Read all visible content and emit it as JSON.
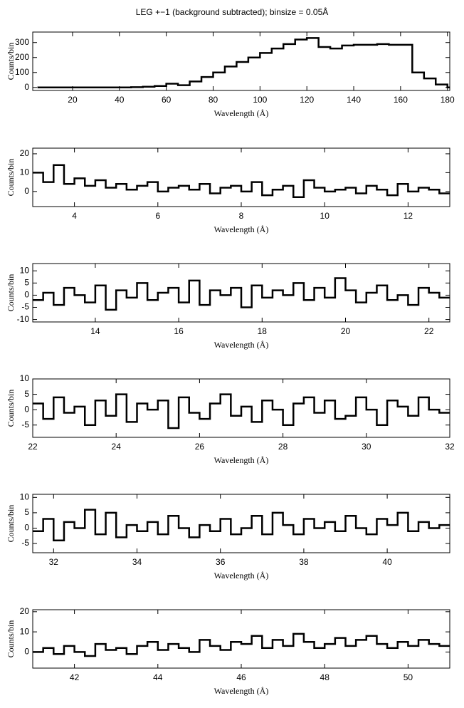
{
  "chart_data": [
    {
      "type": "line",
      "title": "LEG +−1 (background subtracted); binsize = 0.05Å",
      "x_label": "Wavelength (Å)",
      "y_label": "Counts/bin",
      "xlim": [
        3,
        181
      ],
      "ylim": [
        -20,
        370
      ],
      "xticks": [
        20,
        40,
        60,
        80,
        100,
        120,
        140,
        160,
        180
      ],
      "yticks": [
        0,
        100,
        200,
        300
      ],
      "x": [
        5,
        10,
        15,
        20,
        25,
        30,
        35,
        40,
        45,
        50,
        55,
        60,
        65,
        70,
        75,
        80,
        85,
        90,
        95,
        100,
        105,
        110,
        115,
        120,
        125,
        130,
        135,
        140,
        145,
        150,
        155,
        160,
        165,
        170,
        175,
        180
      ],
      "values": [
        0,
        0,
        0,
        0,
        0,
        0,
        0,
        0,
        2,
        5,
        10,
        25,
        15,
        40,
        70,
        100,
        140,
        170,
        200,
        230,
        260,
        290,
        320,
        330,
        270,
        260,
        280,
        285,
        285,
        290,
        285,
        285,
        100,
        60,
        20,
        0
      ]
    },
    {
      "type": "line",
      "x_label": "Wavelength (Å)",
      "y_label": "Counts/bin",
      "xlim": [
        3,
        13
      ],
      "ylim": [
        -8,
        23
      ],
      "xticks": [
        4,
        6,
        8,
        10,
        12
      ],
      "yticks": [
        0,
        10,
        20
      ],
      "x": [
        3,
        3.25,
        3.5,
        3.75,
        4,
        4.25,
        4.5,
        4.75,
        5,
        5.25,
        5.5,
        5.75,
        6,
        6.25,
        6.5,
        6.75,
        7,
        7.25,
        7.5,
        7.75,
        8,
        8.25,
        8.5,
        8.75,
        9,
        9.25,
        9.5,
        9.75,
        10,
        10.25,
        10.5,
        10.75,
        11,
        11.25,
        11.5,
        11.75,
        12,
        12.25,
        12.5,
        12.75
      ],
      "values": [
        10,
        5,
        14,
        4,
        7,
        3,
        6,
        2,
        4,
        1,
        3,
        5,
        0,
        2,
        3,
        1,
        4,
        -1,
        2,
        3,
        0,
        5,
        -2,
        1,
        3,
        -3,
        6,
        2,
        0,
        1,
        2,
        -1,
        3,
        1,
        -2,
        4,
        0,
        2,
        1,
        -1
      ]
    },
    {
      "type": "line",
      "x_label": "Wavelength (Å)",
      "y_label": "Counts/bin",
      "xlim": [
        12.5,
        22.5
      ],
      "ylim": [
        -11,
        13
      ],
      "xticks": [
        14,
        16,
        18,
        20,
        22
      ],
      "yticks": [
        -10,
        -5,
        0,
        5,
        10
      ],
      "x": [
        12.5,
        12.75,
        13,
        13.25,
        13.5,
        13.75,
        14,
        14.25,
        14.5,
        14.75,
        15,
        15.25,
        15.5,
        15.75,
        16,
        16.25,
        16.5,
        16.75,
        17,
        17.25,
        17.5,
        17.75,
        18,
        18.25,
        18.5,
        18.75,
        19,
        19.25,
        19.5,
        19.75,
        20,
        20.25,
        20.5,
        20.75,
        21,
        21.25,
        21.5,
        21.75,
        22,
        22.25
      ],
      "values": [
        -2,
        1,
        -4,
        3,
        0,
        -3,
        4,
        -6,
        2,
        -1,
        5,
        -2,
        1,
        3,
        -3,
        6,
        -4,
        2,
        0,
        3,
        -5,
        4,
        -1,
        2,
        0,
        5,
        -2,
        3,
        -1,
        7,
        2,
        -3,
        1,
        4,
        -2,
        0,
        -4,
        3,
        1,
        -1
      ]
    },
    {
      "type": "line",
      "x_label": "Wavelength (Å)",
      "y_label": "Counts/bin",
      "xlim": [
        22,
        32
      ],
      "ylim": [
        -9,
        10
      ],
      "xticks": [
        22,
        24,
        26,
        28,
        30,
        32
      ],
      "yticks": [
        -5,
        0,
        5,
        10
      ],
      "x": [
        22,
        22.25,
        22.5,
        22.75,
        23,
        23.25,
        23.5,
        23.75,
        24,
        24.25,
        24.5,
        24.75,
        25,
        25.25,
        25.5,
        25.75,
        26,
        26.25,
        26.5,
        26.75,
        27,
        27.25,
        27.5,
        27.75,
        28,
        28.25,
        28.5,
        28.75,
        29,
        29.25,
        29.5,
        29.75,
        30,
        30.25,
        30.5,
        30.75,
        31,
        31.25,
        31.5,
        31.75
      ],
      "values": [
        2,
        -3,
        4,
        -1,
        1,
        -5,
        3,
        -2,
        5,
        -4,
        2,
        0,
        3,
        -6,
        4,
        -1,
        -3,
        2,
        5,
        -2,
        1,
        -4,
        3,
        0,
        -5,
        2,
        4,
        -1,
        3,
        -3,
        -2,
        4,
        0,
        -5,
        3,
        1,
        -2,
        4,
        0,
        -1
      ]
    },
    {
      "type": "line",
      "x_label": "Wavelength (Å)",
      "y_label": "Counts/bin",
      "xlim": [
        31.5,
        41.5
      ],
      "ylim": [
        -8,
        11
      ],
      "xticks": [
        32,
        34,
        36,
        38,
        40
      ],
      "yticks": [
        -5,
        0,
        5,
        10
      ],
      "x": [
        31.5,
        31.75,
        32,
        32.25,
        32.5,
        32.75,
        33,
        33.25,
        33.5,
        33.75,
        34,
        34.25,
        34.5,
        34.75,
        35,
        35.25,
        35.5,
        35.75,
        36,
        36.25,
        36.5,
        36.75,
        37,
        37.25,
        37.5,
        37.75,
        38,
        38.25,
        38.5,
        38.75,
        39,
        39.25,
        39.5,
        39.75,
        40,
        40.25,
        40.5,
        40.75,
        41,
        41.25
      ],
      "values": [
        -1,
        3,
        -4,
        2,
        0,
        6,
        -2,
        5,
        -3,
        1,
        -1,
        2,
        -2,
        4,
        0,
        -3,
        1,
        -1,
        3,
        -2,
        0,
        4,
        -2,
        5,
        1,
        -2,
        3,
        0,
        2,
        -1,
        4,
        0,
        -2,
        3,
        1,
        5,
        -1,
        2,
        0,
        1
      ]
    },
    {
      "type": "line",
      "x_label": "Wavelength (Å)",
      "y_label": "Counts/bin",
      "xlim": [
        41,
        51
      ],
      "ylim": [
        -8,
        21
      ],
      "xticks": [
        42,
        44,
        46,
        48,
        50
      ],
      "yticks": [
        0,
        10,
        20
      ],
      "x": [
        41,
        41.25,
        41.5,
        41.75,
        42,
        42.25,
        42.5,
        42.75,
        43,
        43.25,
        43.5,
        43.75,
        44,
        44.25,
        44.5,
        44.75,
        45,
        45.25,
        45.5,
        45.75,
        46,
        46.25,
        46.5,
        46.75,
        47,
        47.25,
        47.5,
        47.75,
        48,
        48.25,
        48.5,
        48.75,
        49,
        49.25,
        49.5,
        49.75,
        50,
        50.25,
        50.5,
        50.75
      ],
      "values": [
        0,
        2,
        -1,
        3,
        0,
        -2,
        4,
        1,
        2,
        -1,
        3,
        5,
        1,
        4,
        2,
        0,
        6,
        3,
        1,
        5,
        4,
        8,
        2,
        6,
        3,
        9,
        5,
        2,
        4,
        7,
        3,
        6,
        8,
        4,
        2,
        5,
        3,
        6,
        4,
        3
      ]
    }
  ]
}
